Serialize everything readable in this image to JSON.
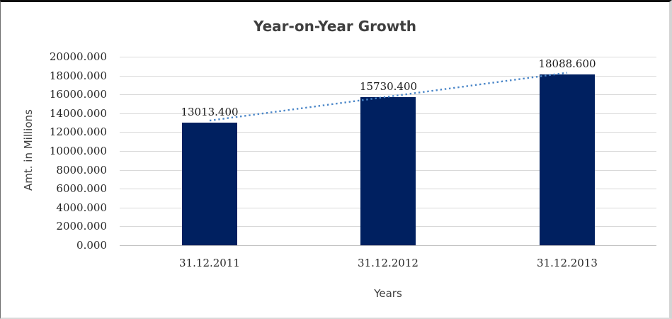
{
  "chart_data": {
    "type": "bar",
    "title": "Year-on-Year Growth",
    "xlabel": "Years",
    "ylabel": "Amt. in Millions",
    "categories": [
      "31.12.2011",
      "31.12.2012",
      "31.12.2013"
    ],
    "values": [
      13013.4,
      15730.4,
      18088.6
    ],
    "data_labels": [
      "13013.400",
      "15730.400",
      "18088.600"
    ],
    "ylim": [
      0,
      20000
    ],
    "ytick_step": 2000,
    "yticks": [
      "20000.000",
      "18000.000",
      "16000.000",
      "14000.000",
      "12000.000",
      "10000.000",
      "8000.000",
      "6000.000",
      "4000.000",
      "2000.000",
      "0.000"
    ],
    "grid": "horizontal",
    "legend": "none",
    "trendline": {
      "type": "linear",
      "style": "dotted",
      "color": "#4a86c8"
    },
    "colors": {
      "bar": "#002060",
      "gridline": "#d9d9d9",
      "axis_line": "#bfbfbf",
      "title_text": "#3f3f3f",
      "tick_text": "#262626",
      "axis_title_text": "#404040"
    }
  }
}
